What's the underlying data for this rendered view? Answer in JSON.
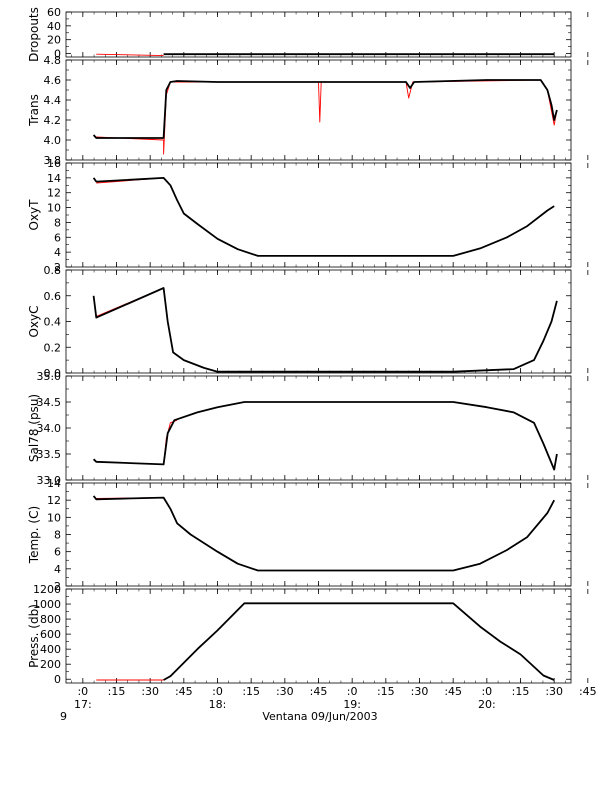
{
  "figure": {
    "x_tick_labels": [
      ":0",
      ":15",
      ":30",
      ":45",
      ":0",
      ":15",
      ":30",
      ":45",
      ":0",
      ":15",
      ":30",
      ":45",
      ":0",
      ":15",
      ":30",
      ":45"
    ],
    "hour_labels": [
      "17:",
      "18:",
      "19:",
      "20:"
    ],
    "corner_label": "9",
    "footer": "Ventana 09/Jun/2003"
  },
  "colors": {
    "cast_line": "#000000",
    "interp_line": "#ff0000",
    "axis": "#000000"
  },
  "chart_data": [
    {
      "type": "line",
      "ylabel": "Dropouts",
      "ylim": [
        -5,
        60
      ],
      "ticks": [
        0,
        20,
        40,
        60
      ],
      "tick_labels": [
        "0",
        "20",
        "40",
        "60"
      ],
      "series": [
        {
          "style": "interp",
          "points": [
            [
              17.1,
              -1
            ],
            [
              17.6,
              -3
            ]
          ]
        },
        {
          "style": "cast",
          "points": [
            [
              17.6,
              -1
            ],
            [
              20.5,
              -1
            ]
          ]
        }
      ]
    },
    {
      "type": "line",
      "ylabel": "Trans",
      "ylim": [
        3.8,
        4.8
      ],
      "ticks": [
        3.8,
        4.0,
        4.2,
        4.4,
        4.6,
        4.8
      ],
      "tick_labels": [
        "3.8",
        "4.0",
        "4.2",
        "4.4",
        "4.6",
        "4.8"
      ],
      "series": [
        {
          "style": "interp",
          "points": [
            [
              17.1,
              4.03
            ],
            [
              17.6,
              4.0
            ],
            [
              17.6,
              3.86
            ],
            [
              17.62,
              4.45
            ],
            [
              17.65,
              4.58
            ],
            [
              18.75,
              4.58
            ],
            [
              18.76,
              4.18
            ],
            [
              18.77,
              4.58
            ],
            [
              19.4,
              4.58
            ],
            [
              19.42,
              4.42
            ],
            [
              19.45,
              4.58
            ],
            [
              20.4,
              4.6
            ],
            [
              20.45,
              4.5
            ],
            [
              20.5,
              4.15
            ],
            [
              20.52,
              4.3
            ]
          ]
        },
        {
          "style": "cast",
          "points": [
            [
              17.08,
              4.05
            ],
            [
              17.1,
              4.02
            ],
            [
              17.6,
              4.02
            ],
            [
              17.62,
              4.5
            ],
            [
              17.65,
              4.58
            ],
            [
              17.7,
              4.59
            ],
            [
              18.0,
              4.58
            ],
            [
              18.5,
              4.58
            ],
            [
              19.0,
              4.58
            ],
            [
              19.4,
              4.58
            ],
            [
              19.43,
              4.52
            ],
            [
              19.46,
              4.58
            ],
            [
              20.0,
              4.6
            ],
            [
              20.4,
              4.6
            ],
            [
              20.45,
              4.5
            ],
            [
              20.48,
              4.35
            ],
            [
              20.5,
              4.2
            ],
            [
              20.52,
              4.3
            ]
          ]
        }
      ]
    },
    {
      "type": "line",
      "ylabel": "OxyT",
      "ylim": [
        2,
        16
      ],
      "ticks": [
        2,
        4,
        6,
        8,
        10,
        12,
        14,
        16
      ],
      "tick_labels": [
        "2",
        "4",
        "6",
        "8",
        "10",
        "12",
        "14",
        "16"
      ],
      "series": [
        {
          "style": "interp",
          "points": [
            [
              17.1,
              13.3
            ],
            [
              17.6,
              14.0
            ]
          ]
        },
        {
          "style": "cast",
          "points": [
            [
              17.08,
              14.0
            ],
            [
              17.1,
              13.5
            ],
            [
              17.6,
              14.0
            ],
            [
              17.65,
              13.0
            ],
            [
              17.7,
              11.0
            ],
            [
              17.75,
              9.2
            ],
            [
              17.85,
              7.8
            ],
            [
              18.0,
              5.8
            ],
            [
              18.15,
              4.4
            ],
            [
              18.3,
              3.5
            ],
            [
              19.75,
              3.5
            ],
            [
              19.95,
              4.5
            ],
            [
              20.15,
              6.0
            ],
            [
              20.3,
              7.5
            ],
            [
              20.45,
              9.6
            ],
            [
              20.5,
              10.2
            ]
          ]
        }
      ]
    },
    {
      "type": "line",
      "ylabel": "OxyC",
      "ylim": [
        0.0,
        0.8
      ],
      "ticks": [
        0.0,
        0.2,
        0.4,
        0.6,
        0.8
      ],
      "tick_labels": [
        "0.0",
        "0.2",
        "0.4",
        "0.6",
        "0.8"
      ],
      "series": [
        {
          "style": "interp",
          "points": [
            [
              17.1,
              0.44
            ],
            [
              17.6,
              0.66
            ]
          ]
        },
        {
          "style": "cast",
          "points": [
            [
              17.08,
              0.6
            ],
            [
              17.1,
              0.43
            ],
            [
              17.6,
              0.66
            ],
            [
              17.63,
              0.4
            ],
            [
              17.67,
              0.16
            ],
            [
              17.75,
              0.1
            ],
            [
              17.9,
              0.04
            ],
            [
              18.0,
              0.01
            ],
            [
              18.2,
              0.01
            ],
            [
              19.75,
              0.01
            ],
            [
              20.2,
              0.03
            ],
            [
              20.35,
              0.1
            ],
            [
              20.42,
              0.25
            ],
            [
              20.48,
              0.4
            ],
            [
              20.52,
              0.56
            ]
          ]
        }
      ]
    },
    {
      "type": "line",
      "ylabel": "Sal78 (psu)",
      "ylim": [
        33.0,
        35.0
      ],
      "ticks": [
        33.0,
        33.5,
        34.0,
        34.5,
        35.0
      ],
      "tick_labels": [
        "33.0",
        "33.5",
        "34.0",
        "34.5",
        "35.0"
      ],
      "series": [
        {
          "style": "interp",
          "points": [
            [
              17.1,
              33.35
            ],
            [
              17.6,
              33.3
            ],
            [
              17.62,
              33.8
            ],
            [
              17.65,
              34.1
            ],
            [
              17.7,
              34.15
            ]
          ]
        },
        {
          "style": "cast",
          "points": [
            [
              17.08,
              33.4
            ],
            [
              17.1,
              33.35
            ],
            [
              17.6,
              33.3
            ],
            [
              17.63,
              33.9
            ],
            [
              17.68,
              34.15
            ],
            [
              17.85,
              34.3
            ],
            [
              18.0,
              34.4
            ],
            [
              18.2,
              34.5
            ],
            [
              19.75,
              34.5
            ],
            [
              20.0,
              34.4
            ],
            [
              20.2,
              34.3
            ],
            [
              20.35,
              34.1
            ],
            [
              20.42,
              33.7
            ],
            [
              20.5,
              33.2
            ],
            [
              20.52,
              33.5
            ]
          ]
        }
      ]
    },
    {
      "type": "line",
      "ylabel": "Temp. (C)",
      "ylim": [
        2,
        14
      ],
      "ticks": [
        2,
        4,
        6,
        8,
        10,
        12,
        14
      ],
      "tick_labels": [
        "2",
        "4",
        "6",
        "8",
        "10",
        "12",
        "14"
      ],
      "series": [
        {
          "style": "interp",
          "points": [
            [
              17.1,
              12.2
            ],
            [
              17.6,
              12.3
            ]
          ]
        },
        {
          "style": "cast",
          "points": [
            [
              17.08,
              12.5
            ],
            [
              17.1,
              12.1
            ],
            [
              17.6,
              12.3
            ],
            [
              17.65,
              11.0
            ],
            [
              17.7,
              9.3
            ],
            [
              17.8,
              8.0
            ],
            [
              18.0,
              6.0
            ],
            [
              18.15,
              4.6
            ],
            [
              18.3,
              3.8
            ],
            [
              19.75,
              3.8
            ],
            [
              19.95,
              4.6
            ],
            [
              20.15,
              6.2
            ],
            [
              20.3,
              7.7
            ],
            [
              20.45,
              10.5
            ],
            [
              20.5,
              12.0
            ]
          ]
        }
      ]
    },
    {
      "type": "line",
      "ylabel": "Press. (db)",
      "ylim": [
        -50,
        1200
      ],
      "ticks": [
        0,
        200,
        400,
        600,
        800,
        1000,
        1200
      ],
      "tick_labels": [
        "0",
        "200",
        "400",
        "600",
        "800",
        "1000",
        "1200"
      ],
      "series": [
        {
          "style": "interp",
          "points": [
            [
              17.1,
              -10
            ],
            [
              17.6,
              -10
            ]
          ]
        },
        {
          "style": "cast",
          "points": [
            [
              17.6,
              -10
            ],
            [
              17.65,
              40
            ],
            [
              17.85,
              400
            ],
            [
              18.0,
              650
            ],
            [
              18.2,
              1010
            ],
            [
              19.75,
              1010
            ],
            [
              19.95,
              700
            ],
            [
              20.1,
              500
            ],
            [
              20.25,
              330
            ],
            [
              20.42,
              50
            ],
            [
              20.5,
              -10
            ]
          ]
        }
      ]
    }
  ]
}
